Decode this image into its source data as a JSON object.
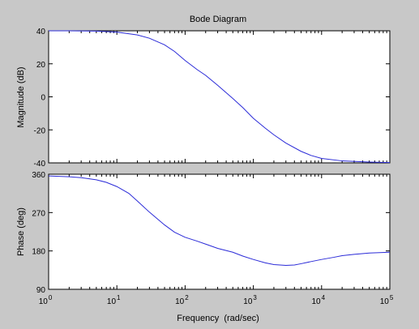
{
  "figure": {
    "background": "#c8c8c8",
    "axes_background": "#ffffff",
    "line_color": "#2b2bd8"
  },
  "chart_data": [
    {
      "type": "line",
      "title": "Bode Diagram",
      "xlabel": "",
      "ylabel": "Magnitude (dB)",
      "xscale": "log",
      "xlim": [
        1,
        100000
      ],
      "ylim": [
        -40,
        40
      ],
      "yticks": [
        -40,
        -20,
        0,
        20,
        40
      ],
      "ytick_labels": [
        "-40",
        "-20",
        "0",
        "20",
        "40"
      ],
      "grid": false,
      "series": [
        {
          "x": [
            1,
            2,
            5,
            10,
            20,
            30,
            50,
            70,
            100,
            150,
            200,
            300,
            500,
            700,
            1000,
            1500,
            2000,
            3000,
            5000,
            7000,
            10000,
            20000,
            50000,
            100000
          ],
          "y": [
            40,
            40,
            39.8,
            39.2,
            37.5,
            35.5,
            31.5,
            27.5,
            22,
            16.5,
            13,
            7,
            -1,
            -6.5,
            -13,
            -19,
            -23,
            -28,
            -33,
            -35.5,
            -37.3,
            -38.8,
            -39.5,
            -39.8
          ]
        }
      ]
    },
    {
      "type": "line",
      "title": "",
      "xlabel": "Frequency  (rad/sec)",
      "ylabel": "Phase (deg)",
      "xscale": "log",
      "xlim": [
        1,
        100000
      ],
      "ylim": [
        90,
        360
      ],
      "yticks": [
        90,
        180,
        270,
        360
      ],
      "ytick_labels": [
        "90",
        "180",
        "270",
        "360"
      ],
      "xtick_labels": [
        {
          "base": "10",
          "exp": "0"
        },
        {
          "base": "10",
          "exp": "1"
        },
        {
          "base": "10",
          "exp": "2"
        },
        {
          "base": "10",
          "exp": "3"
        },
        {
          "base": "10",
          "exp": "4"
        },
        {
          "base": "10",
          "exp": "5"
        }
      ],
      "grid": false,
      "series": [
        {
          "x": [
            1,
            2,
            3,
            5,
            7,
            10,
            15,
            20,
            30,
            50,
            70,
            100,
            150,
            200,
            300,
            500,
            700,
            1000,
            1500,
            2000,
            3000,
            4000,
            5000,
            7000,
            10000,
            15000,
            20000,
            30000,
            50000,
            100000
          ],
          "y": [
            356,
            354,
            352,
            347,
            341,
            331,
            315,
            297,
            271,
            241,
            224,
            212,
            203,
            196,
            186,
            177,
            168,
            160,
            152,
            148,
            146,
            147,
            150,
            155,
            160,
            165,
            169,
            172,
            175,
            177
          ]
        }
      ]
    }
  ]
}
